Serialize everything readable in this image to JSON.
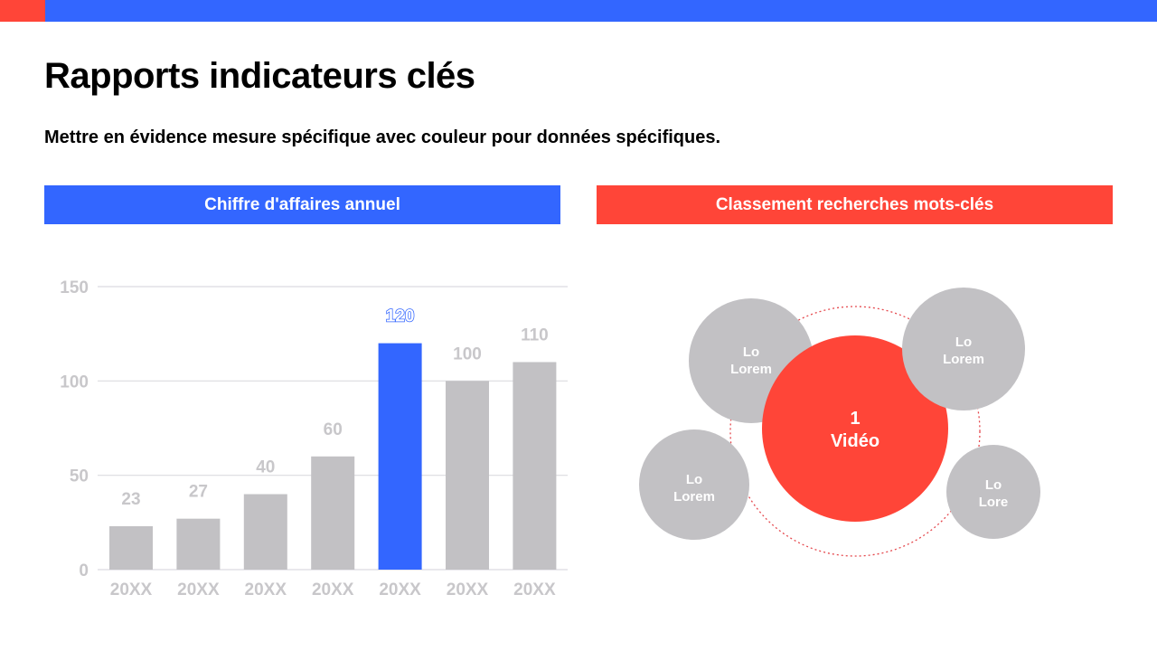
{
  "title": "Rapports indicateurs clés",
  "subtitle": "Mettre en évidence mesure spécifique avec couleur pour données spécifiques.",
  "colors": {
    "accent_blue": "#3366ff",
    "accent_red": "#ff4538",
    "bar_gray": "#c2c1c4",
    "bubble_gray": "#c2c1c4"
  },
  "left_panel": {
    "header": "Chiffre d'affaires annuel"
  },
  "right_panel": {
    "header": "Classement recherches mots-clés",
    "center": {
      "line1": "1",
      "line2": "Vidéo"
    },
    "bubbles": [
      {
        "line1": "Lo",
        "line2": "Lorem"
      },
      {
        "line1": "Lo",
        "line2": "Lorem"
      },
      {
        "line1": "Lo",
        "line2": "Lorem"
      },
      {
        "line1": "Lo",
        "line2": "Lore"
      }
    ]
  },
  "chart_data": {
    "type": "bar",
    "categories": [
      "20XX",
      "20XX",
      "20XX",
      "20XX",
      "20XX",
      "20XX",
      "20XX"
    ],
    "values": [
      23,
      27,
      40,
      60,
      120,
      100,
      110
    ],
    "highlight_index": 4,
    "ylim": [
      0,
      150
    ],
    "yticks": [
      0,
      50,
      100,
      150
    ],
    "grid": true
  }
}
